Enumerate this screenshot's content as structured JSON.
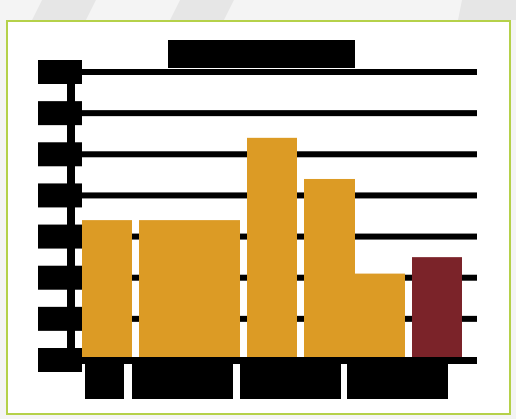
{
  "chart_data": {
    "type": "bar",
    "title": "",
    "xlabel": "",
    "ylabel": "",
    "ylim": [
      0,
      7
    ],
    "yticks": [
      0,
      1,
      2,
      3,
      4,
      5,
      6,
      7
    ],
    "grid": true,
    "bars": [
      {
        "value": 3.4,
        "highlight": false
      },
      {
        "value": 3.4,
        "highlight": false
      },
      {
        "value": 5.4,
        "highlight": false
      },
      {
        "value": 4.4,
        "highlight": false
      },
      {
        "value": 2.1,
        "highlight": false
      },
      {
        "value": 2.5,
        "highlight": true
      }
    ],
    "colors": {
      "bar": "#dc9b25",
      "highlight": "#7b2329",
      "ink": "#000000",
      "frame": "#b5d14a",
      "stripe": "#e6e6e6"
    }
  }
}
